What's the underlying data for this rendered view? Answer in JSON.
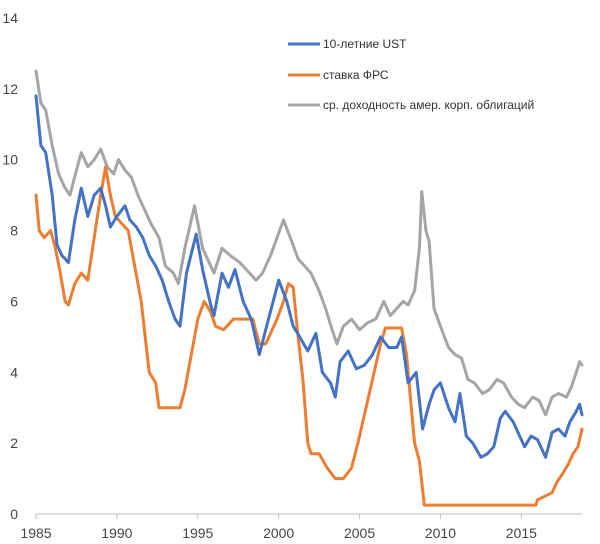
{
  "chart_data": {
    "type": "line",
    "title": "",
    "xlabel": "",
    "ylabel": "",
    "xlim": [
      1985,
      2018.75
    ],
    "ylim": [
      0,
      14
    ],
    "x_ticks": [
      1985,
      1990,
      1995,
      2000,
      2005,
      2010,
      2015
    ],
    "x_tick_labels": [
      "1985",
      "1990",
      "1995",
      "2000",
      "2005",
      "2010",
      "2015"
    ],
    "y_ticks": [
      0,
      2,
      4,
      6,
      8,
      10,
      12,
      14
    ],
    "y_tick_labels": [
      "0",
      "2",
      "4",
      "6",
      "8",
      "10",
      "12",
      "14"
    ],
    "grid": false,
    "legend": "top-right",
    "series": [
      {
        "name": "10-летние UST",
        "color": "#4472C4",
        "points": [
          [
            1985.0,
            11.8
          ],
          [
            1985.3,
            10.4
          ],
          [
            1985.6,
            10.2
          ],
          [
            1986.0,
            9.0
          ],
          [
            1986.3,
            7.6
          ],
          [
            1986.6,
            7.3
          ],
          [
            1987.0,
            7.1
          ],
          [
            1987.4,
            8.3
          ],
          [
            1987.8,
            9.2
          ],
          [
            1988.2,
            8.4
          ],
          [
            1988.6,
            9.0
          ],
          [
            1989.0,
            9.2
          ],
          [
            1989.3,
            8.7
          ],
          [
            1989.6,
            8.1
          ],
          [
            1990.0,
            8.4
          ],
          [
            1990.5,
            8.7
          ],
          [
            1990.8,
            8.3
          ],
          [
            1991.2,
            8.1
          ],
          [
            1991.6,
            7.8
          ],
          [
            1992.0,
            7.3
          ],
          [
            1992.4,
            7.0
          ],
          [
            1992.8,
            6.6
          ],
          [
            1993.2,
            6.0
          ],
          [
            1993.6,
            5.5
          ],
          [
            1993.9,
            5.3
          ],
          [
            1994.3,
            6.8
          ],
          [
            1994.9,
            7.9
          ],
          [
            1995.3,
            6.9
          ],
          [
            1995.8,
            5.9
          ],
          [
            1996.0,
            5.6
          ],
          [
            1996.5,
            6.8
          ],
          [
            1996.9,
            6.4
          ],
          [
            1997.3,
            6.9
          ],
          [
            1997.8,
            6.0
          ],
          [
            1998.3,
            5.5
          ],
          [
            1998.8,
            4.5
          ],
          [
            1999.2,
            5.2
          ],
          [
            1999.6,
            5.9
          ],
          [
            2000.0,
            6.6
          ],
          [
            2000.5,
            6.0
          ],
          [
            2000.9,
            5.3
          ],
          [
            2001.3,
            5.0
          ],
          [
            2001.8,
            4.6
          ],
          [
            2002.3,
            5.1
          ],
          [
            2002.7,
            4.0
          ],
          [
            2003.2,
            3.7
          ],
          [
            2003.5,
            3.3
          ],
          [
            2003.8,
            4.3
          ],
          [
            2004.3,
            4.6
          ],
          [
            2004.8,
            4.1
          ],
          [
            2005.3,
            4.2
          ],
          [
            2005.8,
            4.5
          ],
          [
            2006.3,
            5.0
          ],
          [
            2006.8,
            4.7
          ],
          [
            2007.3,
            4.7
          ],
          [
            2007.6,
            5.0
          ],
          [
            2008.0,
            3.7
          ],
          [
            2008.5,
            4.0
          ],
          [
            2008.9,
            2.4
          ],
          [
            2009.3,
            3.1
          ],
          [
            2009.6,
            3.5
          ],
          [
            2010.0,
            3.7
          ],
          [
            2010.5,
            3.0
          ],
          [
            2010.9,
            2.6
          ],
          [
            2011.2,
            3.4
          ],
          [
            2011.6,
            2.2
          ],
          [
            2012.0,
            2.0
          ],
          [
            2012.5,
            1.6
          ],
          [
            2012.9,
            1.7
          ],
          [
            2013.3,
            1.9
          ],
          [
            2013.7,
            2.7
          ],
          [
            2014.0,
            2.9
          ],
          [
            2014.5,
            2.6
          ],
          [
            2014.9,
            2.2
          ],
          [
            2015.2,
            1.9
          ],
          [
            2015.6,
            2.2
          ],
          [
            2016.0,
            2.1
          ],
          [
            2016.5,
            1.6
          ],
          [
            2016.9,
            2.3
          ],
          [
            2017.3,
            2.4
          ],
          [
            2017.7,
            2.2
          ],
          [
            2018.0,
            2.6
          ],
          [
            2018.4,
            2.9
          ],
          [
            2018.6,
            3.1
          ],
          [
            2018.75,
            2.8
          ]
        ]
      },
      {
        "name": "ставка ФРС",
        "color": "#ED7D31",
        "points": [
          [
            1985.0,
            9.0
          ],
          [
            1985.2,
            8.0
          ],
          [
            1985.5,
            7.8
          ],
          [
            1985.9,
            8.0
          ],
          [
            1986.2,
            7.5
          ],
          [
            1986.5,
            6.8
          ],
          [
            1986.8,
            6.0
          ],
          [
            1987.0,
            5.9
          ],
          [
            1987.4,
            6.5
          ],
          [
            1987.8,
            6.8
          ],
          [
            1988.2,
            6.6
          ],
          [
            1988.6,
            7.8
          ],
          [
            1989.0,
            9.0
          ],
          [
            1989.3,
            9.8
          ],
          [
            1989.6,
            9.0
          ],
          [
            1989.9,
            8.4
          ],
          [
            1990.3,
            8.2
          ],
          [
            1990.7,
            8.0
          ],
          [
            1991.1,
            7.0
          ],
          [
            1991.5,
            6.0
          ],
          [
            1992.0,
            4.0
          ],
          [
            1992.4,
            3.7
          ],
          [
            1992.6,
            3.0
          ],
          [
            1993.0,
            3.0
          ],
          [
            1993.6,
            3.0
          ],
          [
            1993.9,
            3.0
          ],
          [
            1994.2,
            3.5
          ],
          [
            1994.6,
            4.5
          ],
          [
            1995.0,
            5.5
          ],
          [
            1995.4,
            6.0
          ],
          [
            1995.8,
            5.7
          ],
          [
            1996.1,
            5.3
          ],
          [
            1996.6,
            5.2
          ],
          [
            1997.2,
            5.5
          ],
          [
            1997.8,
            5.5
          ],
          [
            1998.4,
            5.5
          ],
          [
            1998.8,
            4.8
          ],
          [
            1999.2,
            4.8
          ],
          [
            1999.5,
            5.1
          ],
          [
            1999.9,
            5.5
          ],
          [
            2000.3,
            6.0
          ],
          [
            2000.6,
            6.5
          ],
          [
            2000.9,
            6.4
          ],
          [
            2001.2,
            5.0
          ],
          [
            2001.5,
            3.8
          ],
          [
            2001.8,
            2.0
          ],
          [
            2002.0,
            1.7
          ],
          [
            2002.5,
            1.7
          ],
          [
            2003.0,
            1.3
          ],
          [
            2003.5,
            1.0
          ],
          [
            2004.0,
            1.0
          ],
          [
            2004.5,
            1.3
          ],
          [
            2004.9,
            2.0
          ],
          [
            2005.3,
            2.8
          ],
          [
            2005.8,
            3.8
          ],
          [
            2006.3,
            4.8
          ],
          [
            2006.6,
            5.25
          ],
          [
            2007.0,
            5.25
          ],
          [
            2007.6,
            5.25
          ],
          [
            2007.9,
            4.5
          ],
          [
            2008.2,
            3.0
          ],
          [
            2008.4,
            2.0
          ],
          [
            2008.7,
            1.5
          ],
          [
            2009.0,
            0.25
          ],
          [
            2010.0,
            0.25
          ],
          [
            2011.0,
            0.25
          ],
          [
            2012.0,
            0.25
          ],
          [
            2013.0,
            0.25
          ],
          [
            2014.0,
            0.25
          ],
          [
            2015.0,
            0.25
          ],
          [
            2015.9,
            0.25
          ],
          [
            2016.0,
            0.4
          ],
          [
            2016.9,
            0.6
          ],
          [
            2017.2,
            0.9
          ],
          [
            2017.5,
            1.1
          ],
          [
            2017.9,
            1.4
          ],
          [
            2018.2,
            1.7
          ],
          [
            2018.5,
            1.9
          ],
          [
            2018.75,
            2.4
          ]
        ]
      },
      {
        "name": "ср. доходность амер. корп. облигаций",
        "color": "#A5A5A5",
        "points": [
          [
            1985.0,
            12.5
          ],
          [
            1985.3,
            11.6
          ],
          [
            1985.6,
            11.4
          ],
          [
            1986.0,
            10.4
          ],
          [
            1986.4,
            9.6
          ],
          [
            1986.8,
            9.2
          ],
          [
            1987.1,
            9.0
          ],
          [
            1987.5,
            9.7
          ],
          [
            1987.8,
            10.2
          ],
          [
            1988.2,
            9.8
          ],
          [
            1988.6,
            10.0
          ],
          [
            1989.0,
            10.3
          ],
          [
            1989.4,
            9.8
          ],
          [
            1989.8,
            9.6
          ],
          [
            1990.1,
            10.0
          ],
          [
            1990.5,
            9.7
          ],
          [
            1990.9,
            9.5
          ],
          [
            1991.3,
            9.0
          ],
          [
            1991.8,
            8.5
          ],
          [
            1992.1,
            8.2
          ],
          [
            1992.6,
            7.8
          ],
          [
            1993.0,
            7.0
          ],
          [
            1993.5,
            6.8
          ],
          [
            1993.8,
            6.5
          ],
          [
            1994.2,
            7.5
          ],
          [
            1994.8,
            8.7
          ],
          [
            1995.3,
            7.5
          ],
          [
            1995.8,
            7.0
          ],
          [
            1996.0,
            6.8
          ],
          [
            1996.5,
            7.5
          ],
          [
            1997.0,
            7.3
          ],
          [
            1997.6,
            7.1
          ],
          [
            1998.0,
            6.9
          ],
          [
            1998.6,
            6.6
          ],
          [
            1999.0,
            6.8
          ],
          [
            1999.5,
            7.3
          ],
          [
            1999.9,
            7.8
          ],
          [
            2000.3,
            8.3
          ],
          [
            2000.8,
            7.7
          ],
          [
            2001.2,
            7.2
          ],
          [
            2001.6,
            7.0
          ],
          [
            2002.0,
            6.8
          ],
          [
            2002.5,
            6.3
          ],
          [
            2002.9,
            5.8
          ],
          [
            2003.3,
            5.2
          ],
          [
            2003.6,
            4.8
          ],
          [
            2004.0,
            5.3
          ],
          [
            2004.5,
            5.5
          ],
          [
            2005.0,
            5.2
          ],
          [
            2005.5,
            5.4
          ],
          [
            2006.0,
            5.5
          ],
          [
            2006.5,
            6.0
          ],
          [
            2006.9,
            5.6
          ],
          [
            2007.3,
            5.8
          ],
          [
            2007.7,
            6.0
          ],
          [
            2008.0,
            5.9
          ],
          [
            2008.4,
            6.3
          ],
          [
            2008.7,
            7.5
          ],
          [
            2008.85,
            9.1
          ],
          [
            2009.1,
            8.0
          ],
          [
            2009.3,
            7.7
          ],
          [
            2009.6,
            5.8
          ],
          [
            2010.0,
            5.3
          ],
          [
            2010.5,
            4.7
          ],
          [
            2010.9,
            4.5
          ],
          [
            2011.3,
            4.4
          ],
          [
            2011.7,
            3.8
          ],
          [
            2012.1,
            3.7
          ],
          [
            2012.6,
            3.4
          ],
          [
            2013.0,
            3.5
          ],
          [
            2013.5,
            3.8
          ],
          [
            2013.9,
            3.7
          ],
          [
            2014.4,
            3.3
          ],
          [
            2014.8,
            3.1
          ],
          [
            2015.2,
            3.0
          ],
          [
            2015.7,
            3.3
          ],
          [
            2016.1,
            3.2
          ],
          [
            2016.5,
            2.8
          ],
          [
            2016.9,
            3.3
          ],
          [
            2017.3,
            3.4
          ],
          [
            2017.8,
            3.3
          ],
          [
            2018.1,
            3.6
          ],
          [
            2018.4,
            4.0
          ],
          [
            2018.6,
            4.3
          ],
          [
            2018.75,
            4.2
          ]
        ]
      }
    ]
  }
}
